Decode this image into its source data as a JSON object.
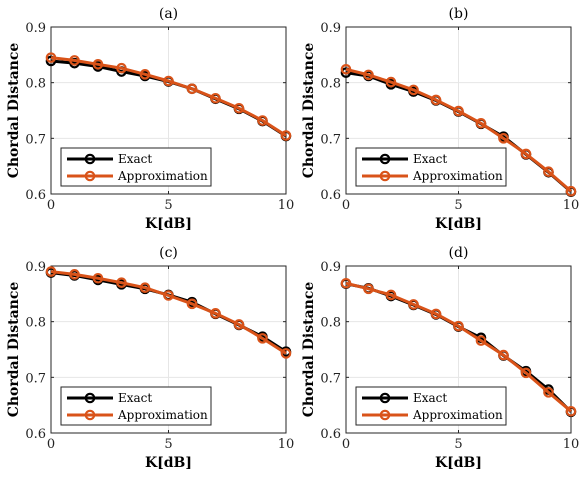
{
  "colors": {
    "exact": "#000000",
    "approximation": "#D95319",
    "grid": "#e6e6e6",
    "axis": "#262626"
  },
  "chart_data": [
    {
      "type": "line",
      "title": "(a)",
      "xlabel": "K[dB]",
      "ylabel": "Chordal Distance",
      "xlim": [
        0,
        10
      ],
      "ylim": [
        0.6,
        0.9
      ],
      "xticks": [
        "0",
        "5",
        "10"
      ],
      "yticks": [
        "0.6",
        "0.7",
        "0.8",
        "0.9"
      ],
      "grid": true,
      "legend_position": "bottom-left",
      "x": [
        0,
        1,
        2,
        3,
        4,
        5,
        6,
        7,
        8,
        9,
        10
      ],
      "series": [
        {
          "name": "Exact",
          "values": [
            0.839,
            0.835,
            0.829,
            0.82,
            0.812,
            0.802,
            0.789,
            0.771,
            0.753,
            0.731,
            0.704
          ]
        },
        {
          "name": "Approximation",
          "values": [
            0.845,
            0.84,
            0.833,
            0.826,
            0.815,
            0.803,
            0.789,
            0.772,
            0.754,
            0.732,
            0.705
          ]
        }
      ]
    },
    {
      "type": "line",
      "title": "(b)",
      "xlabel": "K[dB]",
      "ylabel": "Chordal Distance",
      "xlim": [
        0,
        10
      ],
      "ylim": [
        0.6,
        0.9
      ],
      "xticks": [
        "0",
        "5",
        "10"
      ],
      "yticks": [
        "0.6",
        "0.7",
        "0.8",
        "0.9"
      ],
      "grid": true,
      "legend_position": "bottom-left",
      "x": [
        0,
        1,
        2,
        3,
        4,
        5,
        6,
        7,
        8,
        9,
        10
      ],
      "series": [
        {
          "name": "Exact",
          "values": [
            0.818,
            0.812,
            0.797,
            0.784,
            0.768,
            0.748,
            0.726,
            0.703,
            0.671,
            0.639,
            0.604
          ]
        },
        {
          "name": "Approximation",
          "values": [
            0.824,
            0.814,
            0.801,
            0.787,
            0.769,
            0.749,
            0.727,
            0.7,
            0.672,
            0.64,
            0.605
          ]
        }
      ]
    },
    {
      "type": "line",
      "title": "(c)",
      "xlabel": "K[dB]",
      "ylabel": "Chordal Distance",
      "xlim": [
        0,
        10
      ],
      "ylim": [
        0.6,
        0.9
      ],
      "xticks": [
        "0",
        "5",
        "10"
      ],
      "yticks": [
        "0.6",
        "0.7",
        "0.8",
        "0.9"
      ],
      "grid": true,
      "legend_position": "bottom-left",
      "x": [
        0,
        1,
        2,
        3,
        4,
        5,
        6,
        7,
        8,
        9,
        10
      ],
      "series": [
        {
          "name": "Exact",
          "values": [
            0.888,
            0.883,
            0.875,
            0.867,
            0.859,
            0.848,
            0.835,
            0.814,
            0.794,
            0.773,
            0.746
          ]
        },
        {
          "name": "Approximation",
          "values": [
            0.89,
            0.885,
            0.878,
            0.87,
            0.861,
            0.847,
            0.832,
            0.815,
            0.795,
            0.77,
            0.743
          ]
        }
      ]
    },
    {
      "type": "line",
      "title": "(d)",
      "xlabel": "K[dB]",
      "ylabel": "Chordal Distance",
      "xlim": [
        0,
        10
      ],
      "ylim": [
        0.6,
        0.9
      ],
      "xticks": [
        "0",
        "5",
        "10"
      ],
      "yticks": [
        "0.6",
        "0.7",
        "0.8",
        "0.9"
      ],
      "grid": true,
      "legend_position": "bottom-left",
      "x": [
        0,
        1,
        2,
        3,
        4,
        5,
        6,
        7,
        8,
        9,
        10
      ],
      "series": [
        {
          "name": "Exact",
          "values": [
            0.868,
            0.86,
            0.846,
            0.83,
            0.813,
            0.791,
            0.771,
            0.739,
            0.711,
            0.678,
            0.638
          ]
        },
        {
          "name": "Approximation",
          "values": [
            0.869,
            0.859,
            0.848,
            0.831,
            0.814,
            0.792,
            0.766,
            0.74,
            0.708,
            0.673,
            0.639
          ]
        }
      ]
    }
  ]
}
